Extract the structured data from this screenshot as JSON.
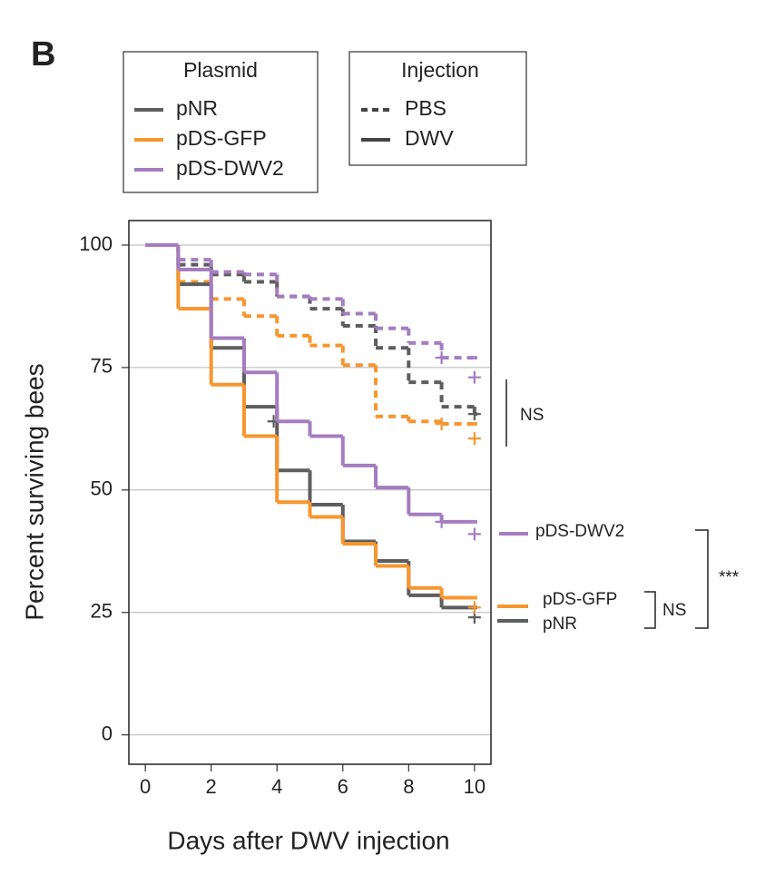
{
  "chart_data": {
    "type": "step",
    "panel_label": "B",
    "xlabel": "Days after DWV injection",
    "ylabel": "Percent surviving bees",
    "xlim": [
      -0.5,
      10.5
    ],
    "ylim": [
      -6,
      105
    ],
    "xticks": [
      0,
      2,
      4,
      6,
      8,
      10
    ],
    "yticks": [
      0,
      25,
      50,
      75,
      100
    ],
    "grid": true,
    "x": [
      0,
      1,
      2,
      3,
      4,
      5,
      6,
      7,
      8,
      9,
      10
    ],
    "legend_plasmid": {
      "title": "Plasmid",
      "entries": [
        {
          "name": "pNR",
          "color": "#5e5e5e"
        },
        {
          "name": "pDS-GFP",
          "color": "#f7962f"
        },
        {
          "name": "pDS-DWV2",
          "color": "#a57cc0"
        }
      ]
    },
    "legend_injection": {
      "title": "Injection",
      "entries": [
        {
          "name": "PBS",
          "dashed": true
        },
        {
          "name": "DWV",
          "dashed": false
        }
      ]
    },
    "series": [
      {
        "plasmid": "pNR",
        "injection": "PBS",
        "values": [
          100,
          96,
          94,
          92.5,
          89.5,
          87,
          83.5,
          79,
          72,
          67,
          65.5
        ],
        "censor_x": [
          10
        ],
        "censor_values": [
          65.5
        ]
      },
      {
        "plasmid": "pDS-GFP",
        "injection": "PBS",
        "values": [
          100,
          92.5,
          89,
          85.5,
          81.5,
          79.5,
          75.5,
          65,
          64,
          63.5,
          63.5
        ],
        "censor_x": [
          9,
          10
        ],
        "censor_values": [
          63.5,
          60.5
        ]
      },
      {
        "plasmid": "pDS-DWV2",
        "injection": "PBS",
        "values": [
          100,
          97,
          94.5,
          94,
          89.5,
          89,
          86,
          83,
          80,
          77,
          77
        ],
        "censor_x": [
          9,
          10
        ],
        "censor_values": [
          77,
          73
        ]
      },
      {
        "plasmid": "pNR",
        "injection": "DWV",
        "values": [
          100,
          92,
          79,
          67,
          54,
          47,
          39.5,
          35.5,
          28.5,
          26,
          26
        ],
        "censor_x": [
          3.9,
          10
        ],
        "censor_values": [
          64,
          24
        ]
      },
      {
        "plasmid": "pDS-GFP",
        "injection": "DWV",
        "values": [
          100,
          87,
          71.5,
          61,
          47.5,
          44.5,
          39,
          34.5,
          30,
          28,
          28
        ],
        "censor_x": [
          10
        ],
        "censor_values": [
          26
        ]
      },
      {
        "plasmid": "pDS-DWV2",
        "injection": "DWV",
        "values": [
          100,
          95,
          81,
          74,
          64,
          61,
          55,
          50.5,
          45,
          43.5,
          43.5
        ],
        "censor_x": [
          9,
          10
        ],
        "censor_values": [
          43.5,
          41
        ]
      }
    ],
    "end_labels": [
      "pDS-DWV2",
      "pDS-GFP",
      "pNR"
    ],
    "significance": [
      "NS",
      "NS",
      "***"
    ]
  }
}
